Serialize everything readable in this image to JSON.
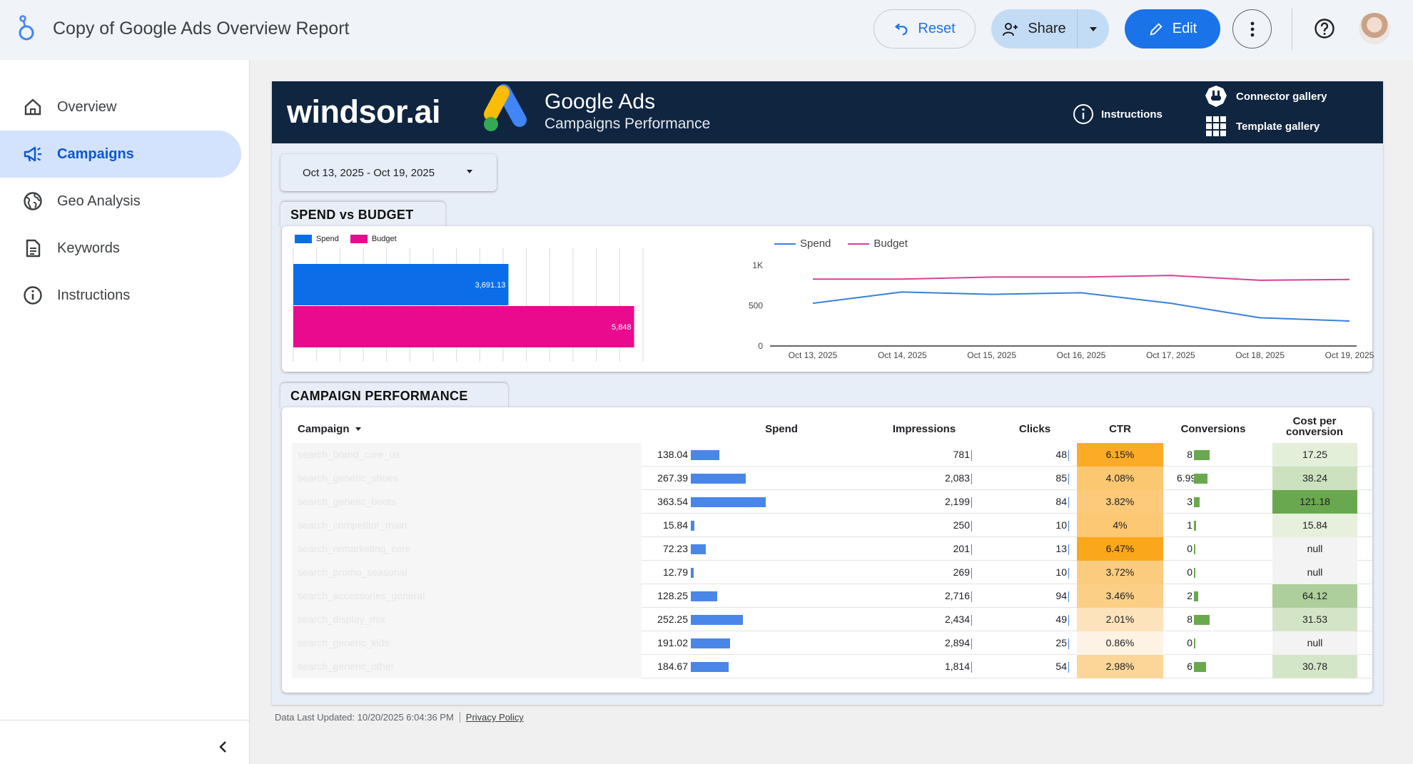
{
  "app": {
    "title": "Copy of Google Ads Overview Report"
  },
  "toolbar": {
    "reset_label": "Reset",
    "share_label": "Share",
    "edit_label": "Edit"
  },
  "sidebar": {
    "items": [
      {
        "label": "Overview",
        "icon": "home-icon"
      },
      {
        "label": "Campaigns",
        "icon": "megaphone-icon",
        "active": true
      },
      {
        "label": "Geo Analysis",
        "icon": "globe-icon"
      },
      {
        "label": "Keywords",
        "icon": "document-icon"
      },
      {
        "label": "Instructions",
        "icon": "info-icon"
      }
    ]
  },
  "banner": {
    "brand": "windsor.ai",
    "product": "Google Ads",
    "subtitle": "Campaigns Performance",
    "instructions_label": "Instructions",
    "connector_label": "Connector gallery",
    "template_label": "Template gallery"
  },
  "date_range": "Oct 13, 2025 - Oct 19, 2025",
  "sections": {
    "spend_budget": "SPEND vs BUDGET",
    "campaign_perf": "CAMPAIGN PERFORMANCE"
  },
  "colors": {
    "spend": "#0b6ee8",
    "budget": "#ea0a8e",
    "line_spend": "#3a7fdc",
    "line_budget": "#d9409a"
  },
  "chart_data": [
    {
      "type": "bar",
      "orientation": "horizontal",
      "series": [
        {
          "name": "Spend",
          "values": [
            3691.13
          ]
        },
        {
          "name": "Budget",
          "values": [
            5848
          ]
        }
      ],
      "data_labels": [
        "3,691.13",
        "5,848"
      ],
      "legend": "top-left"
    },
    {
      "type": "line",
      "x": [
        "Oct 13, 2025",
        "Oct 14, 2025",
        "Oct 15, 2025",
        "Oct 16, 2025",
        "Oct 17, 2025",
        "Oct 18, 2025",
        "Oct 19, 2025"
      ],
      "series": [
        {
          "name": "Spend",
          "values": [
            530,
            670,
            640,
            660,
            530,
            350,
            310
          ]
        },
        {
          "name": "Budget",
          "values": [
            830,
            830,
            855,
            855,
            875,
            815,
            825
          ]
        }
      ],
      "yticks": [
        "1K",
        "500",
        "0"
      ],
      "ylim": [
        0,
        1000
      ],
      "legend": "top-left"
    }
  ],
  "table": {
    "headers": {
      "campaign": "Campaign",
      "spend": "Spend",
      "impressions": "Impressions",
      "clicks": "Clicks",
      "ctr": "CTR",
      "conversions": "Conversions",
      "cpc": "Cost per conversion"
    },
    "rows": [
      {
        "name": "search_brand_core_us",
        "spend": "138.04",
        "spend_v": 138.04,
        "impressions": "781",
        "clicks": "48",
        "ctr": "6.15%",
        "ctr_v": 6.15,
        "conv": "8",
        "conv_v": 8,
        "cpc": "17.25",
        "cpc_v": 17.25
      },
      {
        "name": "search_generic_shoes",
        "spend": "267.39",
        "spend_v": 267.39,
        "impressions": "2,083",
        "clicks": "85",
        "ctr": "4.08%",
        "ctr_v": 4.08,
        "conv": "6.99",
        "conv_v": 6.99,
        "cpc": "38.24",
        "cpc_v": 38.24
      },
      {
        "name": "search_generic_boots",
        "spend": "363.54",
        "spend_v": 363.54,
        "impressions": "2,199",
        "clicks": "84",
        "ctr": "3.82%",
        "ctr_v": 3.82,
        "conv": "3",
        "conv_v": 3,
        "cpc": "121.18",
        "cpc_v": 121.18
      },
      {
        "name": "search_competitor_main",
        "spend": "15.84",
        "spend_v": 15.84,
        "impressions": "250",
        "clicks": "10",
        "ctr": "4%",
        "ctr_v": 4.0,
        "conv": "1",
        "conv_v": 1,
        "cpc": "15.84",
        "cpc_v": 15.84
      },
      {
        "name": "search_remarketing_core",
        "spend": "72.23",
        "spend_v": 72.23,
        "impressions": "201",
        "clicks": "13",
        "ctr": "6.47%",
        "ctr_v": 6.47,
        "conv": "0",
        "conv_v": 0,
        "cpc": "null",
        "cpc_v": null
      },
      {
        "name": "search_promo_seasonal",
        "spend": "12.79",
        "spend_v": 12.79,
        "impressions": "269",
        "clicks": "10",
        "ctr": "3.72%",
        "ctr_v": 3.72,
        "conv": "0",
        "conv_v": 0,
        "cpc": "null",
        "cpc_v": null
      },
      {
        "name": "search_accessories_general",
        "spend": "128.25",
        "spend_v": 128.25,
        "impressions": "2,716",
        "clicks": "94",
        "ctr": "3.46%",
        "ctr_v": 3.46,
        "conv": "2",
        "conv_v": 2,
        "cpc": "64.12",
        "cpc_v": 64.12
      },
      {
        "name": "search_display_mix",
        "spend": "252.25",
        "spend_v": 252.25,
        "impressions": "2,434",
        "clicks": "49",
        "ctr": "2.01%",
        "ctr_v": 2.01,
        "conv": "8",
        "conv_v": 8,
        "cpc": "31.53",
        "cpc_v": 31.53
      },
      {
        "name": "search_generic_kids",
        "spend": "191.02",
        "spend_v": 191.02,
        "impressions": "2,894",
        "clicks": "25",
        "ctr": "0.86%",
        "ctr_v": 0.86,
        "conv": "0",
        "conv_v": 0,
        "cpc": "null",
        "cpc_v": null
      },
      {
        "name": "search_generic_other",
        "spend": "184.67",
        "spend_v": 184.67,
        "impressions": "1,814",
        "clicks": "54",
        "ctr": "2.98%",
        "ctr_v": 2.98,
        "conv": "6",
        "conv_v": 6,
        "cpc": "30.78",
        "cpc_v": 30.78
      }
    ]
  },
  "footer": {
    "updated": "Data Last Updated: 10/20/2025 6:04:36 PM",
    "privacy": "Privacy Policy"
  }
}
